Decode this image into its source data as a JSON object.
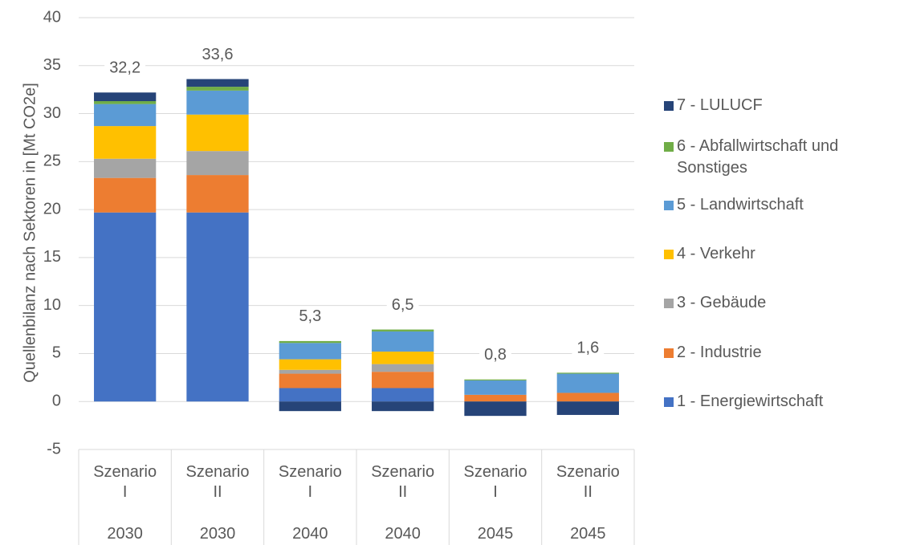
{
  "chart_data": {
    "type": "bar",
    "stacked": true,
    "y_label": "Quellenbilanz nach Sektoren in [Mt CO2e]",
    "categories": [
      "Szenario I",
      "Szenario II",
      "Szenario I",
      "Szenario II",
      "Szenario I",
      "Szenario II"
    ],
    "groups": [
      "2030",
      "2030",
      "2040",
      "2040",
      "2045",
      "2045"
    ],
    "series": [
      {
        "name": "1 - Energiewirtschaft",
        "color": "#4472c4",
        "values": [
          19.7,
          19.7,
          1.4,
          1.4,
          0,
          0
        ]
      },
      {
        "name": "2 - Industrie",
        "color": "#ed7d31",
        "values": [
          3.6,
          3.9,
          1.5,
          1.7,
          0.7,
          0.9
        ]
      },
      {
        "name": "3 - Gebäude",
        "color": "#a5a5a5",
        "values": [
          2.0,
          2.5,
          0.4,
          0.8,
          0,
          0
        ]
      },
      {
        "name": "4 - Verkehr",
        "color": "#ffc000",
        "values": [
          3.4,
          3.8,
          1.1,
          1.3,
          0,
          0
        ]
      },
      {
        "name": "5 - Landwirtschaft",
        "color": "#5b9bd5",
        "values": [
          2.3,
          2.5,
          1.7,
          2.1,
          1.5,
          2.0
        ]
      },
      {
        "name": "6 - Abfallwirtschaft und Sonstiges",
        "color": "#70ad47",
        "values": [
          0.3,
          0.4,
          0.2,
          0.2,
          0.1,
          0.1
        ]
      },
      {
        "name": "7 - LULUCF",
        "color": "#264478",
        "values": [
          0.9,
          0.8,
          -1.0,
          -1.0,
          -1.5,
          -1.4
        ]
      }
    ],
    "totals": {
      "values": [
        32.2,
        33.6,
        5.3,
        6.5,
        0.8,
        1.6
      ],
      "value_labels": [
        "32,2",
        "33,6",
        "5,3",
        "6,5",
        "0,8",
        "1,6"
      ]
    },
    "ylim": [
      -5,
      40
    ],
    "yticks": [
      -5,
      0,
      5,
      10,
      15,
      20,
      25,
      30,
      35,
      40
    ],
    "grid": true,
    "legend": "right"
  }
}
